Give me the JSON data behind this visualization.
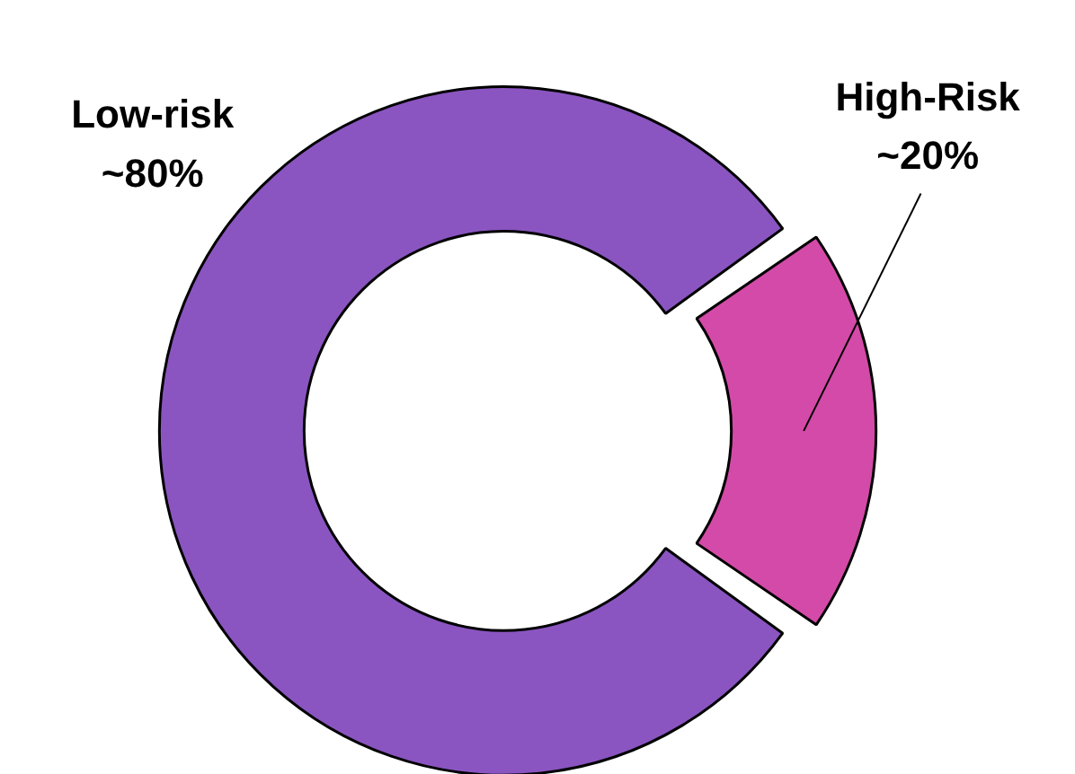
{
  "chart_data": {
    "type": "donut",
    "categories": [
      "Low-risk",
      "High-Risk"
    ],
    "values": [
      80,
      20
    ],
    "value_labels": [
      "~80%",
      "~20%"
    ],
    "colors": [
      "#8a55c0",
      "#d44aa8"
    ]
  }
}
